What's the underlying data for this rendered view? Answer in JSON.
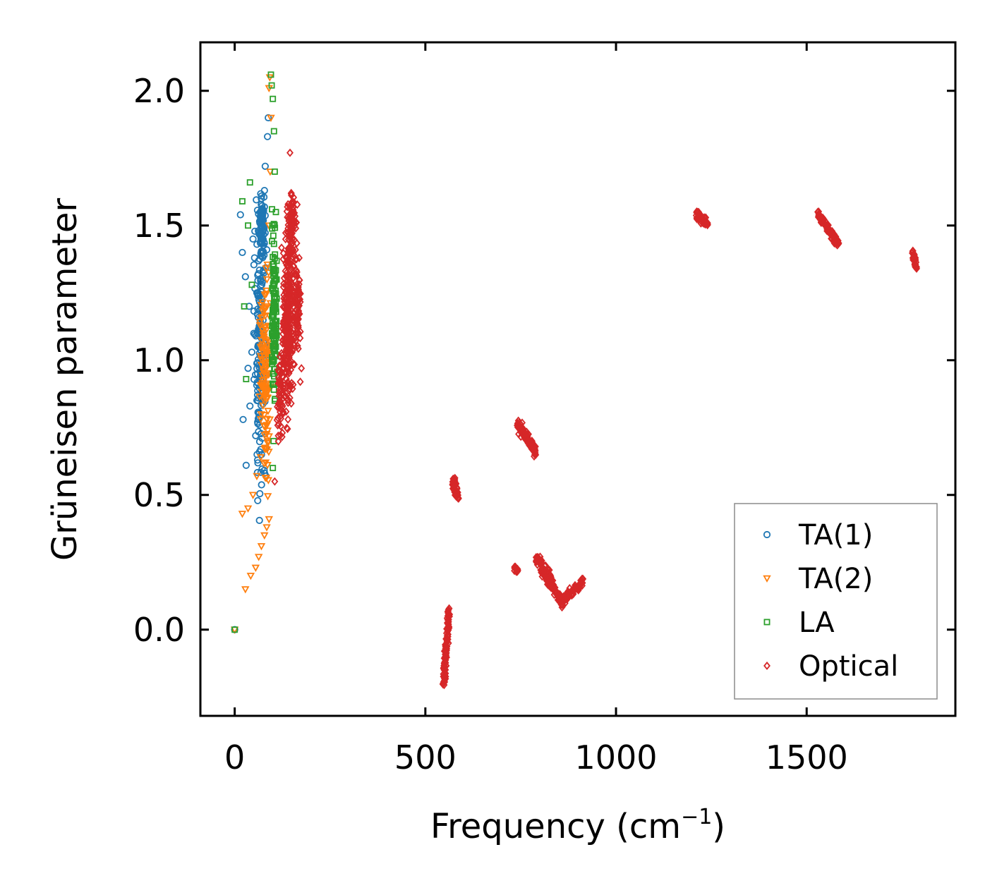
{
  "chart_data": {
    "type": "scatter",
    "title": "",
    "xlabel": "Frequency (cm",
    "xlabel_sup": "−1",
    "xlabel_end": ")",
    "ylabel": "Grüneisen parameter",
    "xlim": [
      -90,
      1890
    ],
    "ylim": [
      -0.32,
      2.18
    ],
    "xticks": [
      0,
      500,
      1000,
      1500
    ],
    "yticks": [
      0.0,
      0.5,
      1.0,
      1.5,
      2.0
    ],
    "xtick_labels": [
      "0",
      "500",
      "1000",
      "1500"
    ],
    "ytick_labels": [
      "0.0",
      "0.5",
      "1.0",
      "1.5",
      "2.0"
    ],
    "grid": false,
    "legend_position": "lower-right",
    "series": [
      {
        "name": "TA(1)",
        "marker": "circle",
        "color": "#1f77b4",
        "points": [
          [
            0,
            0.0
          ],
          [
            22,
            0.78
          ],
          [
            30,
            0.61
          ],
          [
            35,
            0.97
          ],
          [
            40,
            0.83
          ],
          [
            45,
            1.03
          ],
          [
            50,
            1.1
          ],
          [
            52,
            1.38
          ],
          [
            55,
            0.72
          ],
          [
            58,
            1.25
          ],
          [
            60,
            0.95
          ],
          [
            62,
            1.48
          ],
          [
            65,
            0.66
          ],
          [
            67,
            1.12
          ],
          [
            70,
            1.6
          ],
          [
            72,
            0.88
          ],
          [
            75,
            1.33
          ],
          [
            77,
            1.02
          ],
          [
            80,
            1.72
          ],
          [
            82,
            0.57
          ],
          [
            84,
            1.41
          ],
          [
            86,
            1.83
          ],
          [
            88,
            1.9
          ],
          [
            15,
            1.54
          ],
          [
            20,
            1.4
          ],
          [
            28,
            1.31
          ],
          [
            38,
            1.2
          ],
          [
            48,
            1.45
          ],
          [
            68,
            1.52
          ],
          [
            78,
            1.63
          ]
        ],
        "clusters": [
          {
            "x": 66,
            "xs": 12,
            "y": 1.05,
            "ys": 0.4,
            "n": 160
          },
          {
            "x": 72,
            "xs": 6,
            "y": 1.5,
            "ys": 0.12,
            "n": 70
          }
        ]
      },
      {
        "name": "TA(2)",
        "marker": "triangle-down",
        "color": "#ff7f0e",
        "points": [
          [
            0,
            0.0
          ],
          [
            28,
            0.15
          ],
          [
            42,
            0.2
          ],
          [
            55,
            0.23
          ],
          [
            63,
            0.27
          ],
          [
            70,
            0.31
          ],
          [
            78,
            0.35
          ],
          [
            84,
            0.38
          ],
          [
            90,
            0.41
          ],
          [
            20,
            0.43
          ],
          [
            35,
            0.45
          ],
          [
            48,
            0.5
          ],
          [
            58,
            0.57
          ],
          [
            68,
            0.64
          ],
          [
            88,
            0.7
          ],
          [
            92,
            0.78
          ],
          [
            95,
            0.9
          ],
          [
            97,
            1.05
          ],
          [
            85,
            1.2
          ],
          [
            90,
            1.5
          ],
          [
            93,
            1.7
          ],
          [
            95,
            1.9
          ],
          [
            90,
            2.01
          ],
          [
            92,
            2.05
          ]
        ],
        "clusters": [
          {
            "x": 80,
            "xs": 10,
            "y": 0.95,
            "ys": 0.32,
            "n": 130
          }
        ]
      },
      {
        "name": "LA",
        "marker": "square",
        "color": "#2ca02c",
        "points": [
          [
            0,
            0.0
          ],
          [
            20,
            1.59
          ],
          [
            25,
            1.2
          ],
          [
            30,
            0.93
          ],
          [
            35,
            1.5
          ],
          [
            40,
            1.66
          ],
          [
            45,
            1.28
          ],
          [
            95,
            2.06
          ],
          [
            97,
            2.02
          ],
          [
            100,
            1.97
          ],
          [
            103,
            1.85
          ],
          [
            105,
            1.7
          ],
          [
            108,
            1.55
          ],
          [
            110,
            1.3
          ],
          [
            108,
            1.05
          ],
          [
            105,
            0.85
          ],
          [
            102,
            0.7
          ],
          [
            100,
            0.6
          ]
        ],
        "clusters": [
          {
            "x": 103,
            "xs": 6,
            "y": 1.15,
            "ys": 0.28,
            "n": 120
          }
        ]
      },
      {
        "name": "Optical",
        "marker": "diamond",
        "color": "#d62728",
        "points": [
          [
            105,
            0.55
          ],
          [
            145,
            1.77
          ],
          [
            172,
            0.92
          ],
          [
            175,
            0.97
          ]
        ],
        "clusters": [
          {
            "x": 140,
            "xs": 12,
            "y": 1.15,
            "ys": 0.28,
            "n": 280
          },
          {
            "x": 150,
            "xs": 10,
            "y": 1.5,
            "ys": 0.12,
            "n": 80
          },
          {
            "x": 165,
            "xs": 7,
            "y": 1.2,
            "ys": 0.14,
            "n": 80
          },
          {
            "x": 120,
            "xs": 8,
            "y": 0.85,
            "ys": 0.12,
            "n": 60
          }
        ],
        "segments": [
          {
            "x0": 548,
            "x1": 562,
            "y0": -0.2,
            "y1": 0.07,
            "jx": 6,
            "jy": 0.02,
            "n": 110
          },
          {
            "x0": 572,
            "x1": 586,
            "y0": 0.55,
            "y1": 0.5,
            "jx": 5,
            "jy": 0.025,
            "n": 45
          },
          {
            "x0": 740,
            "x1": 790,
            "y0": 0.77,
            "y1": 0.66,
            "jx": 4,
            "jy": 0.02,
            "n": 90
          },
          {
            "x0": 732,
            "x1": 742,
            "y0": 0.23,
            "y1": 0.22,
            "jx": 3,
            "jy": 0.01,
            "n": 14
          },
          {
            "x0": 790,
            "x1": 830,
            "y0": 0.27,
            "y1": 0.18,
            "jx": 5,
            "jy": 0.025,
            "n": 60
          },
          {
            "x0": 820,
            "x1": 860,
            "y0": 0.19,
            "y1": 0.1,
            "jx": 5,
            "jy": 0.02,
            "n": 60
          },
          {
            "x0": 860,
            "x1": 915,
            "y0": 0.11,
            "y1": 0.18,
            "jx": 4,
            "jy": 0.015,
            "n": 60
          },
          {
            "x0": 1210,
            "x1": 1240,
            "y0": 1.54,
            "y1": 1.51,
            "jx": 3,
            "jy": 0.015,
            "n": 40
          },
          {
            "x0": 1530,
            "x1": 1585,
            "y0": 1.54,
            "y1": 1.43,
            "jx": 4,
            "jy": 0.015,
            "n": 80
          },
          {
            "x0": 1778,
            "x1": 1788,
            "y0": 1.4,
            "y1": 1.35,
            "jx": 5,
            "jy": 0.015,
            "n": 40
          }
        ]
      }
    ]
  }
}
